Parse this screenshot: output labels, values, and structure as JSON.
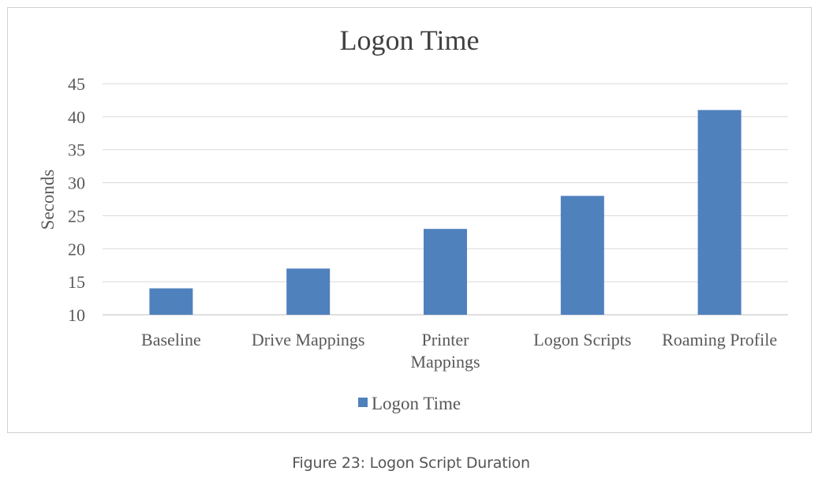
{
  "caption": "Figure 23: Logon Script Duration",
  "colors": {
    "bar": "#4f81bd",
    "grid": "#d9d9d9",
    "text": "#595959",
    "title": "#404040"
  },
  "chart_data": {
    "type": "bar",
    "title": "Logon Time",
    "xlabel": "",
    "ylabel": "Seconds",
    "categories": [
      "Baseline",
      "Drive Mappings",
      "Printer Mappings",
      "Logon Scripts",
      "Roaming Profile"
    ],
    "category_lines": [
      [
        "Baseline"
      ],
      [
        "Drive Mappings"
      ],
      [
        "Printer",
        "Mappings"
      ],
      [
        "Logon Scripts"
      ],
      [
        "Roaming Profile"
      ]
    ],
    "series": [
      {
        "name": "Logon Time",
        "values": [
          14,
          17,
          23,
          28,
          41
        ]
      }
    ],
    "ylim": [
      10,
      45
    ],
    "yticks": [
      10,
      15,
      20,
      25,
      30,
      35,
      40,
      45
    ],
    "grid": true,
    "legend_position": "bottom"
  }
}
